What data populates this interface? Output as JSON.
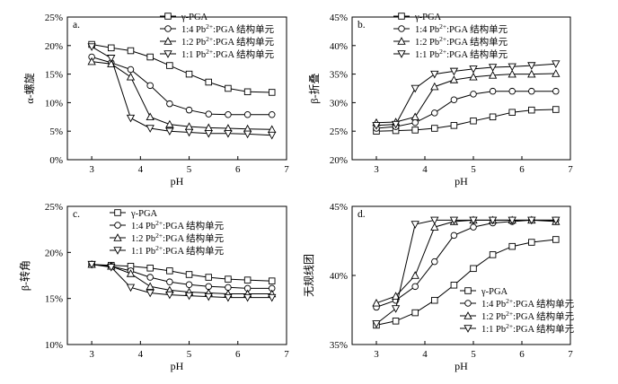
{
  "chart_data": [
    {
      "id": "a",
      "panel_label": "a.",
      "type": "line",
      "xlabel": "pH",
      "ylabel": "α-螺旋",
      "xlim": [
        2.5,
        7
      ],
      "xticks": [
        "3",
        "4",
        "5",
        "6",
        "7"
      ],
      "ylim": [
        0,
        25
      ],
      "yticks": [
        "0%",
        "5%",
        "10%",
        "15%",
        "20%",
        "25%"
      ],
      "legend_position": "top-right",
      "x": [
        3.0,
        3.4,
        3.8,
        4.2,
        4.6,
        5.0,
        5.4,
        5.8,
        6.2,
        6.7
      ],
      "series": [
        {
          "name": "γ-PGA",
          "marker": "square",
          "legend_parts": [
            "γ-PGA"
          ],
          "values": [
            20.2,
            19.6,
            19.1,
            18.0,
            16.5,
            15.0,
            13.6,
            12.5,
            11.9,
            11.8
          ]
        },
        {
          "name": "1:4 Pb2+:PGA 结构单元",
          "marker": "circle",
          "legend_parts": [
            "1:4 Pb",
            "2+",
            ":PGA 结构单元"
          ],
          "values": [
            18.0,
            17.0,
            15.8,
            13.0,
            9.8,
            8.7,
            8.0,
            7.9,
            7.9,
            7.9
          ]
        },
        {
          "name": "1:2 Pb2+:PGA 结构单元",
          "marker": "triangle-up",
          "legend_parts": [
            "1:2 Pb",
            "2+",
            ":PGA 结构单元"
          ],
          "values": [
            17.2,
            16.8,
            14.5,
            7.5,
            6.2,
            5.8,
            5.6,
            5.5,
            5.4,
            5.3
          ]
        },
        {
          "name": "1:1 Pb2+:PGA 结构单元",
          "marker": "triangle-down",
          "legend_parts": [
            "1:1 Pb",
            "2+",
            ":PGA 结构单元"
          ],
          "values": [
            19.8,
            17.8,
            7.3,
            5.5,
            5.0,
            4.8,
            4.6,
            4.6,
            4.5,
            4.3
          ]
        }
      ]
    },
    {
      "id": "b",
      "panel_label": "b.",
      "type": "line",
      "xlabel": "pH",
      "ylabel": "β-折叠",
      "xlim": [
        2.5,
        7
      ],
      "xticks": [
        "3",
        "4",
        "5",
        "6",
        "7"
      ],
      "ylim": [
        20,
        45
      ],
      "yticks": [
        "20%",
        "25%",
        "30%",
        "35%",
        "40%",
        "45%"
      ],
      "legend_position": "top-right",
      "x": [
        3.0,
        3.4,
        3.8,
        4.2,
        4.6,
        5.0,
        5.4,
        5.8,
        6.2,
        6.7
      ],
      "series": [
        {
          "name": "γ-PGA",
          "marker": "square",
          "legend_parts": [
            "γ-PGA"
          ],
          "values": [
            25.0,
            25.1,
            25.2,
            25.5,
            26.0,
            26.8,
            27.5,
            28.3,
            28.7,
            28.8
          ]
        },
        {
          "name": "1:4 Pb2+:PGA 结构单元",
          "marker": "circle",
          "legend_parts": [
            "1:4 Pb",
            "2+",
            ":PGA 结构单元"
          ],
          "values": [
            25.5,
            25.8,
            26.5,
            28.2,
            30.5,
            31.5,
            32.0,
            32.0,
            32.0,
            32.0
          ]
        },
        {
          "name": "1:2 Pb2+:PGA 结构单元",
          "marker": "triangle-up",
          "legend_parts": [
            "1:2 Pb",
            "2+",
            ":PGA 结构单元"
          ],
          "values": [
            26.5,
            26.6,
            27.5,
            32.8,
            34.0,
            34.5,
            34.8,
            35.0,
            35.0,
            35.1
          ]
        },
        {
          "name": "1:1 Pb2+:PGA 结构单元",
          "marker": "triangle-down",
          "legend_parts": [
            "1:1 Pb",
            "2+",
            ":PGA 结构单元"
          ],
          "values": [
            26.0,
            26.2,
            32.5,
            35.0,
            35.5,
            35.9,
            36.2,
            36.3,
            36.5,
            36.8
          ]
        }
      ]
    },
    {
      "id": "c",
      "panel_label": "c.",
      "type": "line",
      "xlabel": "pH",
      "ylabel": "β-转角",
      "xlim": [
        2.5,
        7
      ],
      "xticks": [
        "3",
        "4",
        "5",
        "6",
        "7"
      ],
      "ylim": [
        10,
        25
      ],
      "yticks": [
        "10%",
        "15%",
        "20%",
        "25%"
      ],
      "legend_position": "top-right",
      "x": [
        3.0,
        3.4,
        3.8,
        4.2,
        4.6,
        5.0,
        5.4,
        5.8,
        6.2,
        6.7
      ],
      "series": [
        {
          "name": "γ-PGA",
          "marker": "square",
          "legend_parts": [
            "γ-PGA"
          ],
          "values": [
            18.7,
            18.6,
            18.5,
            18.3,
            18.0,
            17.6,
            17.3,
            17.1,
            17.0,
            16.9
          ]
        },
        {
          "name": "1:4 Pb2+:PGA 结构单元",
          "marker": "circle",
          "legend_parts": [
            "1:4 Pb",
            "2+",
            ":PGA 结构单元"
          ],
          "values": [
            18.7,
            18.5,
            18.0,
            17.3,
            16.8,
            16.5,
            16.3,
            16.2,
            16.1,
            16.1
          ]
        },
        {
          "name": "1:2 Pb2+:PGA 结构单元",
          "marker": "triangle-up",
          "legend_parts": [
            "1:2 Pb",
            "2+",
            ":PGA 结构单元"
          ],
          "values": [
            18.7,
            18.5,
            17.7,
            16.3,
            15.9,
            15.7,
            15.6,
            15.5,
            15.5,
            15.5
          ]
        },
        {
          "name": "1:1 Pb2+:PGA 结构单元",
          "marker": "triangle-down",
          "legend_parts": [
            "1:1 Pb",
            "2+",
            ":PGA 结构单元"
          ],
          "values": [
            18.7,
            18.4,
            16.2,
            15.6,
            15.4,
            15.3,
            15.2,
            15.1,
            15.1,
            15.1
          ]
        }
      ]
    },
    {
      "id": "d",
      "panel_label": "d.",
      "type": "line",
      "xlabel": "pH",
      "ylabel": "无规线团",
      "xlim": [
        2.5,
        7
      ],
      "xticks": [
        "3",
        "4",
        "5",
        "6",
        "7"
      ],
      "ylim": [
        35,
        45
      ],
      "yticks": [
        "35%",
        "40%",
        "45%"
      ],
      "legend_position": "bottom-right",
      "x": [
        3.0,
        3.4,
        3.8,
        4.2,
        4.6,
        5.0,
        5.4,
        5.8,
        6.2,
        6.7
      ],
      "series": [
        {
          "name": "γ-PGA",
          "marker": "square",
          "legend_parts": [
            "γ-PGA"
          ],
          "values": [
            36.4,
            36.7,
            37.3,
            38.2,
            39.3,
            40.5,
            41.5,
            42.1,
            42.4,
            42.6
          ]
        },
        {
          "name": "1:4 Pb2+:PGA 结构单元",
          "marker": "circle",
          "legend_parts": [
            "1:4 Pb",
            "2+",
            ":PGA 结构单元"
          ],
          "values": [
            37.7,
            38.2,
            39.2,
            41.0,
            42.9,
            43.5,
            43.8,
            43.9,
            44.0,
            44.0
          ]
        },
        {
          "name": "1:2 Pb2+:PGA 结构单元",
          "marker": "triangle-up",
          "legend_parts": [
            "1:2 Pb",
            "2+",
            ":PGA 结构单元"
          ],
          "values": [
            38.0,
            38.5,
            40.0,
            43.5,
            43.9,
            44.0,
            44.0,
            44.0,
            44.0,
            43.9
          ]
        },
        {
          "name": "1:1 Pb2+:PGA 结构单元",
          "marker": "triangle-down",
          "legend_parts": [
            "1:1 Pb",
            "2+",
            ":PGA 结构单元"
          ],
          "values": [
            36.5,
            37.6,
            43.7,
            44.0,
            44.0,
            44.0,
            44.0,
            44.0,
            44.0,
            44.0
          ]
        }
      ]
    }
  ]
}
